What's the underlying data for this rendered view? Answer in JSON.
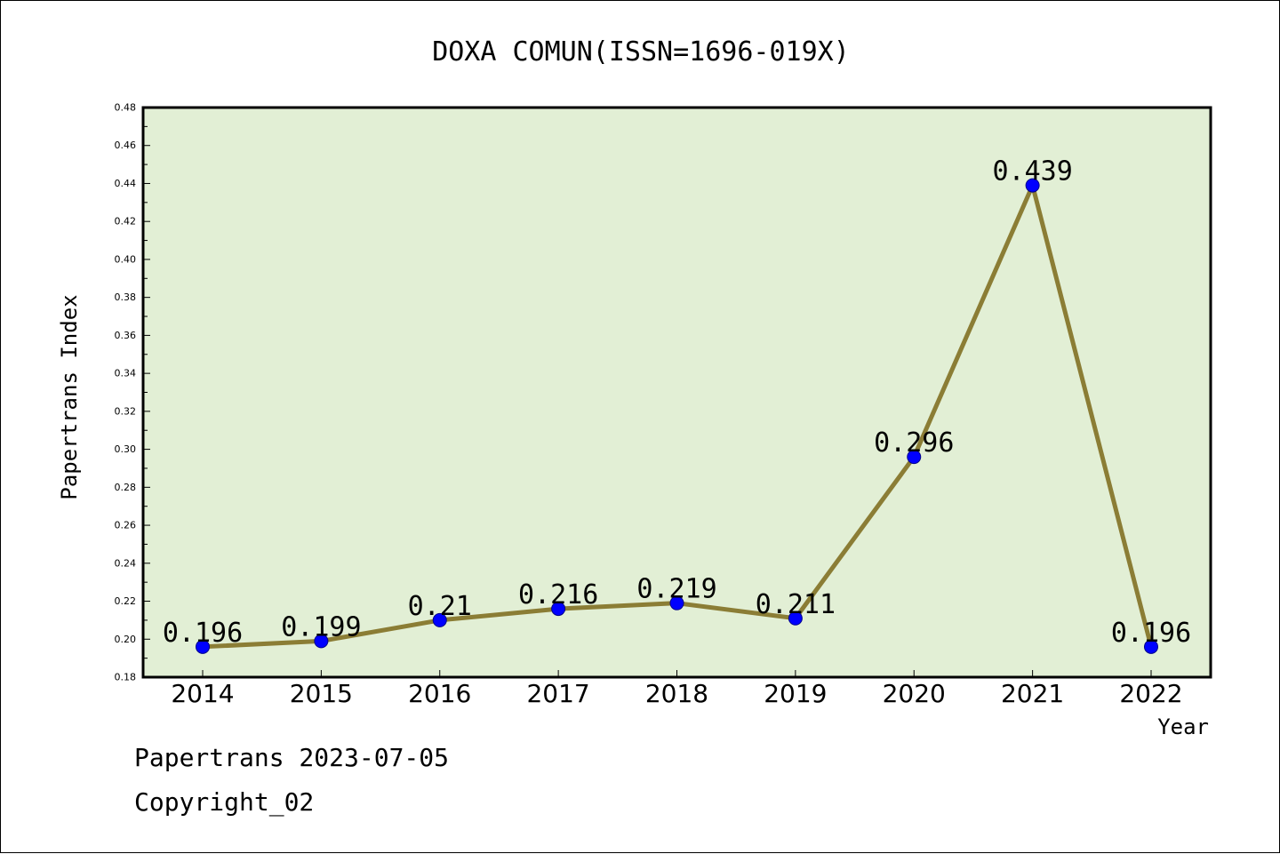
{
  "chart_data": {
    "type": "line",
    "title": "DOXA COMUN(ISSN=1696-019X)",
    "xlabel": "Year",
    "ylabel": "Papertrans Index",
    "categories": [
      "2014",
      "2015",
      "2016",
      "2017",
      "2018",
      "2019",
      "2020",
      "2021",
      "2022"
    ],
    "series": [
      {
        "values": [
          0.196,
          0.199,
          0.21,
          0.216,
          0.219,
          0.211,
          0.296,
          0.439,
          0.196
        ]
      }
    ],
    "data_labels": [
      "0.196",
      "0.199",
      "0.21",
      "0.216",
      "0.219",
      "0.211",
      "0.296",
      "0.439",
      "0.196"
    ],
    "ylim": [
      0.18,
      0.48
    ],
    "yticks": [
      "0.18",
      "0.20",
      "0.22",
      "0.24",
      "0.26",
      "0.28",
      "0.30",
      "0.32",
      "0.34",
      "0.36",
      "0.38",
      "0.40",
      "0.42",
      "0.44",
      "0.46",
      "0.48"
    ],
    "grid": false,
    "legend": "none",
    "colors": {
      "plot_background": "#e2efd5",
      "line": "#8b7d35",
      "marker": "#0000ff"
    }
  },
  "footer": {
    "line1": "Papertrans 2023-07-05",
    "line2": "Copyright_02"
  }
}
